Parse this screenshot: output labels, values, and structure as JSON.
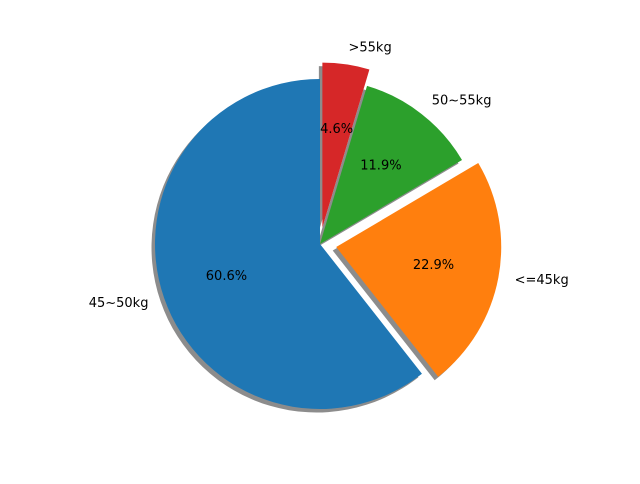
{
  "chart_data": {
    "type": "pie",
    "title": "",
    "categories": [
      "45~50kg",
      "<=45kg",
      "50~55kg",
      ">55kg"
    ],
    "values": [
      60.6,
      22.9,
      11.9,
      4.6
    ],
    "value_labels": [
      "60.6%",
      "22.9%",
      "11.9%",
      "4.6%"
    ],
    "explode": [
      0,
      0.1,
      0,
      0.1
    ],
    "start_angle_deg": 90,
    "direction": "counterclockwise",
    "shadow": true,
    "legend": "none",
    "colors": [
      "#1f77b4",
      "#ff7f0e",
      "#2ca02c",
      "#d62728"
    ]
  }
}
